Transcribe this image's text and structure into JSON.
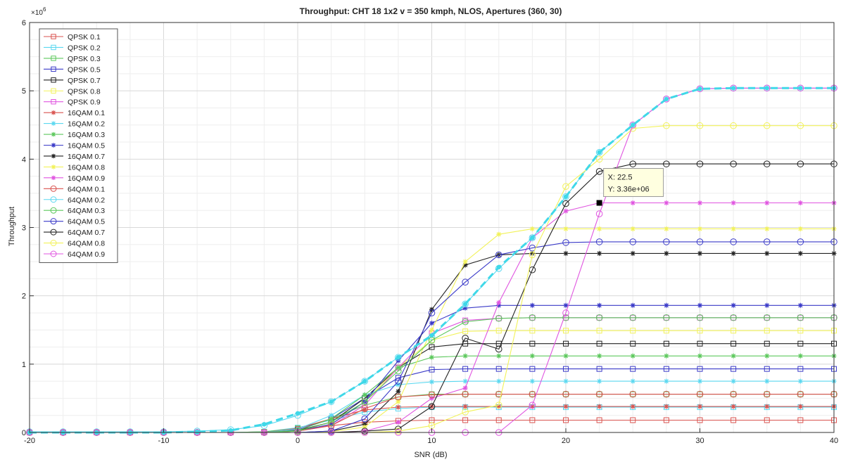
{
  "chart_data": {
    "type": "line",
    "title": "Throughput:  CHT 18 1x2 v = 350 kmph, NLOS, Apertures (360, 30)",
    "xlabel": "SNR (dB)",
    "ylabel": "Throughput",
    "y_exponent_label": "×10",
    "y_exponent_power": "6",
    "xlim": [
      -20,
      40
    ],
    "ylim": [
      0,
      6
    ],
    "x_ticks": [
      -20,
      -10,
      0,
      10,
      20,
      30,
      40
    ],
    "y_ticks": [
      0,
      1,
      2,
      3,
      4,
      5,
      6
    ],
    "grid": true,
    "legend_position": "top-left",
    "x": [
      -20,
      -17.5,
      -15,
      -12.5,
      -10,
      -7.5,
      -5,
      -2.5,
      0,
      2.5,
      5,
      7.5,
      10,
      12.5,
      15,
      17.5,
      20,
      22.5,
      25,
      27.5,
      30,
      32.5,
      35,
      37.5,
      40
    ],
    "series": [
      {
        "name": "QPSK 0.1",
        "color": "#d9534f",
        "marker": "square",
        "values": [
          0,
          0,
          0,
          0,
          0,
          0,
          0,
          0.01,
          0.05,
          0.1,
          0.15,
          0.17,
          0.18,
          0.18,
          0.18,
          0.18,
          0.18,
          0.18,
          0.18,
          0.18,
          0.18,
          0.18,
          0.18,
          0.18,
          0.18
        ]
      },
      {
        "name": "QPSK 0.2",
        "color": "#5bd8f0",
        "marker": "square",
        "values": [
          0,
          0,
          0,
          0,
          0,
          0,
          0,
          0.01,
          0.07,
          0.18,
          0.3,
          0.35,
          0.37,
          0.37,
          0.37,
          0.37,
          0.37,
          0.37,
          0.37,
          0.37,
          0.37,
          0.37,
          0.37,
          0.37,
          0.37
        ]
      },
      {
        "name": "QPSK 0.3",
        "color": "#5cc85c",
        "marker": "square",
        "values": [
          0,
          0,
          0,
          0,
          0,
          0,
          0,
          0.01,
          0.06,
          0.2,
          0.4,
          0.52,
          0.56,
          0.56,
          0.56,
          0.56,
          0.56,
          0.56,
          0.56,
          0.56,
          0.56,
          0.56,
          0.56,
          0.56,
          0.56
        ]
      },
      {
        "name": "QPSK 0.5",
        "color": "#3a3ac8",
        "marker": "square",
        "values": [
          0,
          0,
          0,
          0,
          0,
          0,
          0,
          0,
          0.04,
          0.2,
          0.5,
          0.8,
          0.92,
          0.93,
          0.93,
          0.93,
          0.93,
          0.93,
          0.93,
          0.93,
          0.93,
          0.93,
          0.93,
          0.93,
          0.93
        ]
      },
      {
        "name": "QPSK 0.7",
        "color": "#222222",
        "marker": "square",
        "values": [
          0,
          0,
          0,
          0,
          0,
          0,
          0,
          0,
          0.03,
          0.15,
          0.5,
          0.95,
          1.25,
          1.3,
          1.3,
          1.3,
          1.3,
          1.3,
          1.3,
          1.3,
          1.3,
          1.3,
          1.3,
          1.3,
          1.3
        ]
      },
      {
        "name": "QPSK 0.8",
        "color": "#f2f25a",
        "marker": "square",
        "values": [
          0,
          0,
          0,
          0,
          0,
          0,
          0,
          0,
          0.02,
          0.12,
          0.45,
          0.95,
          1.35,
          1.48,
          1.49,
          1.49,
          1.49,
          1.49,
          1.49,
          1.49,
          1.49,
          1.49,
          1.49,
          1.49,
          1.49
        ]
      },
      {
        "name": "QPSK 0.9",
        "color": "#e055e0",
        "marker": "square",
        "values": [
          0,
          0,
          0,
          0,
          0,
          0,
          0,
          0,
          0.02,
          0.1,
          0.4,
          0.95,
          1.45,
          1.64,
          1.67,
          1.68,
          1.68,
          1.68,
          1.68,
          1.68,
          1.68,
          1.68,
          1.68,
          1.68,
          1.68
        ]
      },
      {
        "name": "16QAM 0.1",
        "color": "#d9534f",
        "marker": "star",
        "values": [
          0,
          0,
          0,
          0,
          0,
          0,
          0,
          0,
          0.06,
          0.2,
          0.33,
          0.37,
          0.38,
          0.38,
          0.38,
          0.38,
          0.38,
          0.38,
          0.38,
          0.38,
          0.38,
          0.38,
          0.38,
          0.38,
          0.38
        ]
      },
      {
        "name": "16QAM 0.2",
        "color": "#5bd8f0",
        "marker": "star",
        "values": [
          0,
          0,
          0,
          0,
          0,
          0,
          0,
          0,
          0.05,
          0.25,
          0.55,
          0.7,
          0.74,
          0.75,
          0.75,
          0.75,
          0.75,
          0.75,
          0.75,
          0.75,
          0.75,
          0.75,
          0.75,
          0.75,
          0.75
        ]
      },
      {
        "name": "16QAM 0.3",
        "color": "#5cc85c",
        "marker": "star",
        "values": [
          0,
          0,
          0,
          0,
          0,
          0,
          0,
          0,
          0.03,
          0.2,
          0.55,
          0.95,
          1.1,
          1.12,
          1.12,
          1.12,
          1.12,
          1.12,
          1.12,
          1.12,
          1.12,
          1.12,
          1.12,
          1.12,
          1.12
        ]
      },
      {
        "name": "16QAM 0.5",
        "color": "#3a3ac8",
        "marker": "star",
        "values": [
          0,
          0,
          0,
          0,
          0,
          0,
          0,
          0,
          0.02,
          0.12,
          0.45,
          1.05,
          1.6,
          1.82,
          1.86,
          1.86,
          1.86,
          1.86,
          1.86,
          1.86,
          1.86,
          1.86,
          1.86,
          1.86,
          1.86
        ]
      },
      {
        "name": "16QAM 0.7",
        "color": "#222222",
        "marker": "star",
        "values": [
          0,
          0,
          0,
          0,
          0,
          0,
          0,
          0,
          0,
          0.02,
          0.12,
          0.6,
          1.8,
          2.45,
          2.6,
          2.62,
          2.62,
          2.62,
          2.62,
          2.62,
          2.62,
          2.62,
          2.62,
          2.62,
          2.62
        ]
      },
      {
        "name": "16QAM 0.8",
        "color": "#f2f25a",
        "marker": "star",
        "values": [
          0,
          0,
          0,
          0,
          0,
          0,
          0,
          0,
          0,
          0.01,
          0.08,
          0.45,
          1.5,
          2.5,
          2.9,
          2.98,
          2.98,
          2.98,
          2.98,
          2.98,
          2.98,
          2.98,
          2.98,
          2.98,
          2.98
        ]
      },
      {
        "name": "16QAM 0.9",
        "color": "#e055e0",
        "marker": "star",
        "values": [
          0,
          0,
          0,
          0,
          0,
          0,
          0,
          0,
          0,
          0,
          0.02,
          0.15,
          0.5,
          0.65,
          1.9,
          2.85,
          3.24,
          3.36,
          3.36,
          3.36,
          3.36,
          3.36,
          3.36,
          3.36,
          3.36
        ]
      },
      {
        "name": "64QAM 0.1",
        "color": "#d9534f",
        "marker": "circle",
        "values": [
          0,
          0,
          0,
          0,
          0,
          0,
          0,
          0,
          0.02,
          0.1,
          0.35,
          0.52,
          0.55,
          0.56,
          0.56,
          0.56,
          0.56,
          0.56,
          0.56,
          0.56,
          0.56,
          0.56,
          0.56,
          0.56,
          0.56
        ]
      },
      {
        "name": "64QAM 0.2",
        "color": "#5bd8f0",
        "marker": "circle",
        "values": [
          0.01,
          0.01,
          0.01,
          0.01,
          0.01,
          0.02,
          0.04,
          0.1,
          0.25,
          0.45,
          0.75,
          1.1,
          1.4,
          1.88,
          2.4,
          2.85,
          3.45,
          4.1,
          4.5,
          4.88,
          5.03,
          5.04,
          5.04,
          5.04,
          5.04
        ]
      },
      {
        "name": "64QAM 0.3",
        "color": "#5cc85c",
        "marker": "circle",
        "values": [
          0,
          0,
          0,
          0,
          0,
          0,
          0,
          0,
          0.02,
          0.15,
          0.45,
          0.9,
          1.35,
          1.62,
          1.67,
          1.68,
          1.68,
          1.68,
          1.68,
          1.68,
          1.68,
          1.68,
          1.68,
          1.68,
          1.68
        ]
      },
      {
        "name": "64QAM 0.5",
        "color": "#3a3ac8",
        "marker": "circle",
        "values": [
          0,
          0,
          0,
          0,
          0,
          0,
          0,
          0,
          0,
          0.02,
          0.2,
          0.75,
          1.75,
          2.2,
          2.6,
          2.7,
          2.78,
          2.79,
          2.79,
          2.79,
          2.79,
          2.79,
          2.79,
          2.79,
          2.79
        ]
      },
      {
        "name": "64QAM 0.7",
        "color": "#222222",
        "marker": "circle",
        "values": [
          0,
          0,
          0,
          0,
          0,
          0,
          0,
          0,
          0,
          0,
          0.02,
          0.05,
          0.38,
          1.38,
          1.22,
          2.38,
          3.35,
          3.82,
          3.93,
          3.93,
          3.93,
          3.93,
          3.93,
          3.93,
          3.93
        ]
      },
      {
        "name": "64QAM 0.8",
        "color": "#f2f25a",
        "marker": "circle",
        "values": [
          0,
          0,
          0,
          0,
          0,
          0,
          0,
          0,
          0,
          0,
          0,
          0.02,
          0.1,
          0.3,
          0.4,
          2.6,
          3.6,
          4.0,
          4.45,
          4.49,
          4.49,
          4.49,
          4.49,
          4.49,
          4.49
        ]
      },
      {
        "name": "64QAM 0.9",
        "color": "#e055e0",
        "marker": "circle",
        "values": [
          0,
          0,
          0,
          0,
          0,
          0,
          0,
          0,
          0,
          0,
          0,
          0,
          0,
          0,
          0,
          0.4,
          1.75,
          3.2,
          4.5,
          4.88,
          5.03,
          5.04,
          5.04,
          5.04,
          5.04
        ]
      }
    ],
    "envelope": {
      "color": "#3fd8e8",
      "style": "dashed",
      "values": [
        0,
        0,
        0,
        0,
        0,
        0.01,
        0.03,
        0.12,
        0.28,
        0.45,
        0.75,
        1.1,
        1.42,
        1.88,
        2.42,
        2.85,
        3.45,
        4.1,
        4.5,
        4.88,
        5.03,
        5.04,
        5.04,
        5.04,
        5.04
      ]
    },
    "datatip": {
      "x_label": "X: 22.5",
      "y_label": "Y: 3.36e+06",
      "x": 22.5,
      "y": 3.36
    }
  }
}
